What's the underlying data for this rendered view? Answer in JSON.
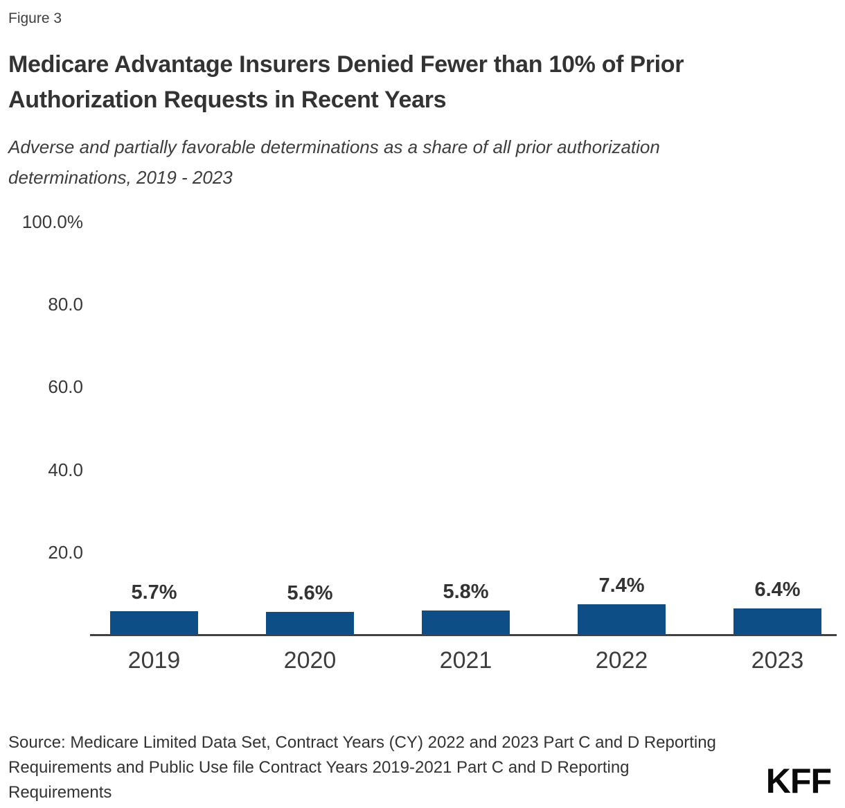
{
  "figure_label": "Figure 3",
  "title": "Medicare Advantage Insurers Denied Fewer than 10% of Prior Authorization Requests in Recent Years",
  "subtitle": "Adverse and partially favorable determinations as a share of all prior authorization determinations, 2019 - 2023",
  "chart_data": {
    "type": "bar",
    "categories": [
      "2019",
      "2020",
      "2021",
      "2022",
      "2023"
    ],
    "values": [
      5.7,
      5.6,
      5.8,
      7.4,
      6.4
    ],
    "value_labels": [
      "5.7%",
      "5.6%",
      "5.8%",
      "7.4%",
      "6.4%"
    ],
    "y_axis_ticks": [
      {
        "value": 100,
        "label": "100.0%"
      },
      {
        "value": 80,
        "label": "80.0"
      },
      {
        "value": 60,
        "label": "60.0"
      },
      {
        "value": 40,
        "label": "40.0"
      },
      {
        "value": 20,
        "label": "20.0"
      }
    ],
    "ylim": [
      0,
      100
    ],
    "xlabel": "",
    "ylabel": "",
    "grid": false,
    "legend": false,
    "bar_color": "#0d4e87"
  },
  "source": {
    "lines": [
      "Source: Medicare Limited Data Set, Contract Years (CY) 2022 and 2023 Part C and D Reporting",
      "Requirements and Public Use file Contract Years 2019-2021 Part C and D Reporting",
      "Requirements"
    ]
  },
  "branding": {
    "logo_text": "KFF"
  },
  "colors": {
    "bar": "#0d4e87",
    "axis_line": "#424242",
    "heading_text": "#333333",
    "body_text": "#3d3d3d",
    "logo": "#0a0a0a"
  }
}
